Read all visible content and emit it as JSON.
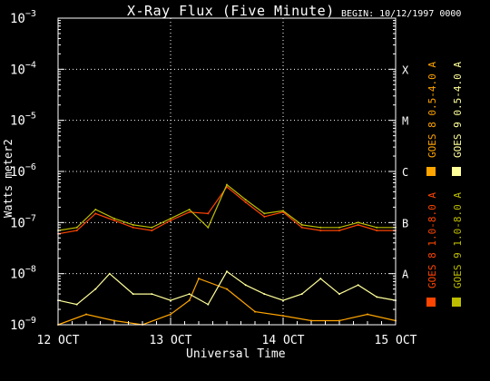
{
  "chart_data": {
    "type": "line",
    "title": "X-Ray Flux (Five Minute)",
    "subtitle": "BEGIN: 10/12/1997 0000",
    "xlabel": "Universal Time",
    "ylabel": "Watts meter2",
    "y_scale": "log",
    "ylim": [
      1e-09,
      0.001
    ],
    "xlim": [
      "1997-10-12 00:00",
      "1997-10-15 00:00"
    ],
    "x_ticks": [
      "12 OCT",
      "13 OCT",
      "14 OCT",
      "15 OCT"
    ],
    "y_ticks": [
      {
        "base": "10",
        "exp": "−9"
      },
      {
        "base": "10",
        "exp": "−8"
      },
      {
        "base": "10",
        "exp": "−7"
      },
      {
        "base": "10",
        "exp": "−6"
      },
      {
        "base": "10",
        "exp": "−5"
      },
      {
        "base": "10",
        "exp": "−4"
      },
      {
        "base": "10",
        "exp": "−3"
      }
    ],
    "flare_classes": [
      {
        "label": "A",
        "level": 1e-08
      },
      {
        "label": "B",
        "level": 1e-07
      },
      {
        "label": "C",
        "level": 1e-06
      },
      {
        "label": "M",
        "level": 1e-05
      },
      {
        "label": "X",
        "level": 0.0001
      }
    ],
    "grid": "dotted horizontal at class levels, dotted vertical at day boundaries",
    "legend_placement": "right, vertical",
    "colors": {
      "goes8_long": "#ff4500",
      "goes8_short": "#ffa500",
      "goes9_long": "#bdbd00",
      "goes9_short": "#ffff99",
      "axes": "#ffffff",
      "background": "#000000"
    },
    "series": [
      {
        "name": "GOES 8 1.0-8.0 A",
        "color": "#ff4500",
        "x": [
          "1997-10-12 00:00",
          "1997-10-12 04:00",
          "1997-10-12 08:00",
          "1997-10-12 12:00",
          "1997-10-12 16:00",
          "1997-10-12 20:00",
          "1997-10-13 00:00",
          "1997-10-13 04:00",
          "1997-10-13 08:00",
          "1997-10-13 12:00",
          "1997-10-13 16:00",
          "1997-10-13 20:00",
          "1997-10-14 00:00",
          "1997-10-14 04:00",
          "1997-10-14 08:00",
          "1997-10-14 12:00",
          "1997-10-14 16:00",
          "1997-10-14 20:00",
          "1997-10-15 00:00"
        ],
        "values": [
          6e-08,
          7e-08,
          1.5e-07,
          1.1e-07,
          8e-08,
          7e-08,
          1.1e-07,
          1.6e-07,
          1.5e-07,
          5e-07,
          2.5e-07,
          1.3e-07,
          1.6e-07,
          8e-08,
          7e-08,
          7e-08,
          9e-08,
          7e-08,
          7e-08
        ]
      },
      {
        "name": "GOES 8 0.5-4.0 A",
        "color": "#ffa500",
        "x": [
          "1997-10-12 00:00",
          "1997-10-12 06:00",
          "1997-10-12 12:00",
          "1997-10-12 18:00",
          "1997-10-13 00:00",
          "1997-10-13 04:00",
          "1997-10-13 06:00",
          "1997-10-13 12:00",
          "1997-10-13 18:00",
          "1997-10-14 00:00",
          "1997-10-14 06:00",
          "1997-10-14 12:00",
          "1997-10-14 18:00",
          "1997-10-15 00:00"
        ],
        "values": [
          1e-09,
          1.6e-09,
          1.2e-09,
          1e-09,
          1.6e-09,
          3e-09,
          8e-09,
          5e-09,
          1.8e-09,
          1.5e-09,
          1.2e-09,
          1.2e-09,
          1.6e-09,
          1.2e-09
        ]
      },
      {
        "name": "GOES 9 1.0-8.0 A",
        "color": "#bdbd00",
        "x": [
          "1997-10-12 00:00",
          "1997-10-12 04:00",
          "1997-10-12 08:00",
          "1997-10-12 12:00",
          "1997-10-12 16:00",
          "1997-10-12 20:00",
          "1997-10-13 00:00",
          "1997-10-13 04:00",
          "1997-10-13 08:00",
          "1997-10-13 12:00",
          "1997-10-13 16:00",
          "1997-10-13 20:00",
          "1997-10-14 00:00",
          "1997-10-14 04:00",
          "1997-10-14 08:00",
          "1997-10-14 12:00",
          "1997-10-14 16:00",
          "1997-10-14 20:00",
          "1997-10-15 00:00"
        ],
        "values": [
          7e-08,
          8e-08,
          1.8e-07,
          1.2e-07,
          9e-08,
          8e-08,
          1.2e-07,
          1.8e-07,
          8e-08,
          5.5e-07,
          2.8e-07,
          1.5e-07,
          1.7e-07,
          9e-08,
          8e-08,
          8e-08,
          1e-07,
          8e-08,
          8e-08
        ]
      },
      {
        "name": "GOES 9 0.5-4.0 A",
        "color": "#ffff99",
        "x": [
          "1997-10-12 00:00",
          "1997-10-12 04:00",
          "1997-10-12 08:00",
          "1997-10-12 11:00",
          "1997-10-12 16:00",
          "1997-10-12 20:00",
          "1997-10-13 00:00",
          "1997-10-13 04:00",
          "1997-10-13 08:00",
          "1997-10-13 12:00",
          "1997-10-13 16:00",
          "1997-10-13 20:00",
          "1997-10-14 00:00",
          "1997-10-14 04:00",
          "1997-10-14 08:00",
          "1997-10-14 12:00",
          "1997-10-14 16:00",
          "1997-10-14 20:00",
          "1997-10-15 00:00"
        ],
        "values": [
          3e-09,
          2.5e-09,
          5e-09,
          1e-08,
          4e-09,
          4e-09,
          3e-09,
          4e-09,
          2.5e-09,
          1.1e-08,
          6e-09,
          4e-09,
          3e-09,
          4e-09,
          8e-09,
          4e-09,
          6e-09,
          3.5e-09,
          3e-09
        ]
      }
    ]
  }
}
